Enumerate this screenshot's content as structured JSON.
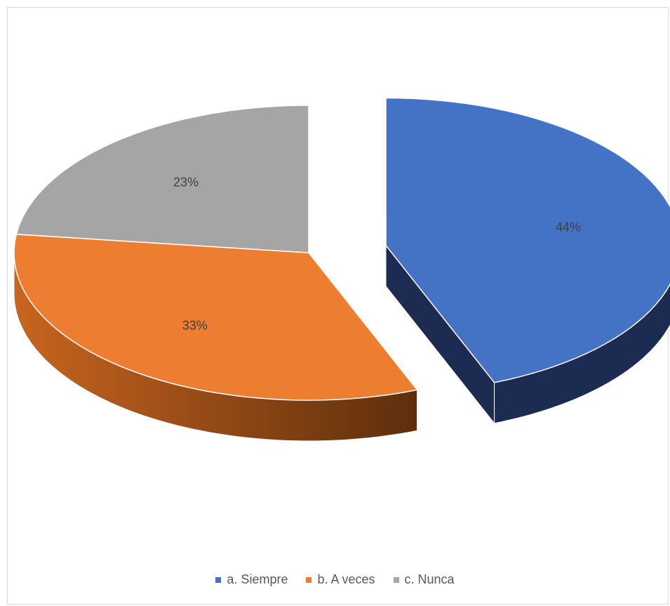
{
  "chart_data": {
    "type": "pie",
    "style": "3d-exploded",
    "categories": [
      "a. Siempre",
      "b. A veces",
      "c. Nunca"
    ],
    "values": [
      44,
      33,
      23
    ],
    "data_labels": [
      "44%",
      "33%",
      "23%"
    ],
    "colors": [
      "#4472C4",
      "#ED7D31",
      "#A5A5A5"
    ],
    "legend_position": "bottom"
  }
}
